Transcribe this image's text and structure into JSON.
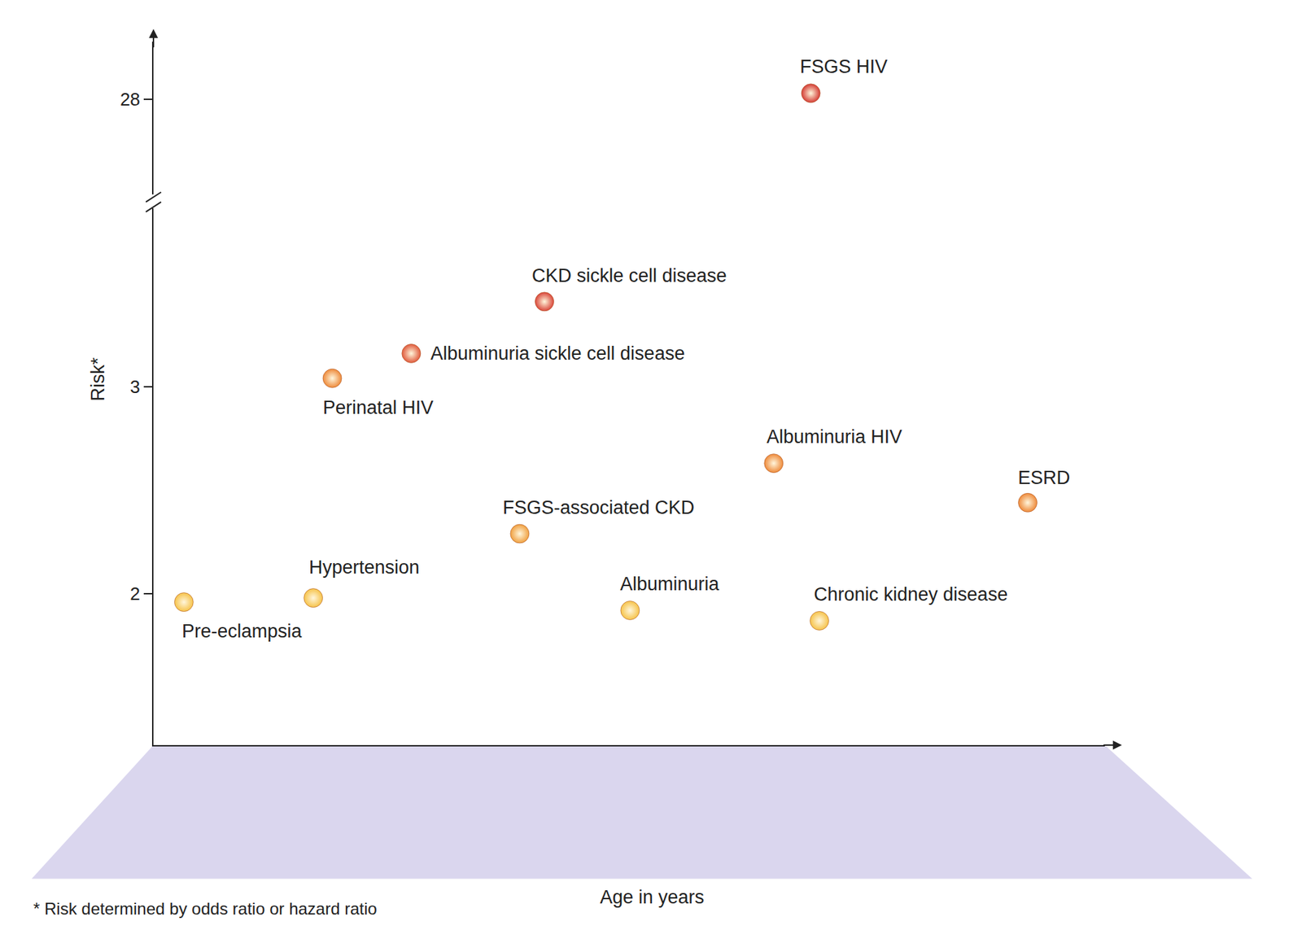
{
  "chart_data": {
    "type": "scatter",
    "x_label": "Age in years",
    "y_label": "Risk*",
    "footnote": "* Risk determined by odds ratio or hazard ratio",
    "xlim": [
      0,
      100
    ],
    "ylim": [
      1.27,
      3.86
    ],
    "yticks": [
      2,
      3
    ],
    "y2lim": [
      27.54,
      28.28
    ],
    "y2ticks": [
      28
    ],
    "tick_labels": "y",
    "grid": false,
    "data_labels": true,
    "series": [
      {
        "point_labels": [
          "Pre-eclampsia",
          "Hypertension",
          "Perinatal HIV",
          "Albuminuria sickle cell disease",
          "CKD sickle cell disease",
          "FSGS-associated CKD",
          "Albuminuria",
          "Albuminuria HIV",
          "Chronic kidney disease",
          "ESRD"
        ],
        "x": [
          3.2,
          16.8,
          18.8,
          27.1,
          41.1,
          38.5,
          50.1,
          65.2,
          70.0,
          91.9
        ],
        "values": [
          1.96,
          1.98,
          3.04,
          3.16,
          3.41,
          2.29,
          1.92,
          2.63,
          1.87,
          2.44
        ],
        "colors": [
          "#f6c34a",
          "#f6c34a",
          "#ee8a3a",
          "#e05a3c",
          "#d9463a",
          "#f0a040",
          "#f6c34a",
          "#ee8a3a",
          "#f6c34a",
          "#ee8a3a"
        ]
      },
      {
        "axis": "y2",
        "point_labels": [
          "FSGS HIV"
        ],
        "x": [
          69.1
        ],
        "values": [
          28.03
        ],
        "colors": [
          "#d43c35"
        ]
      }
    ]
  }
}
